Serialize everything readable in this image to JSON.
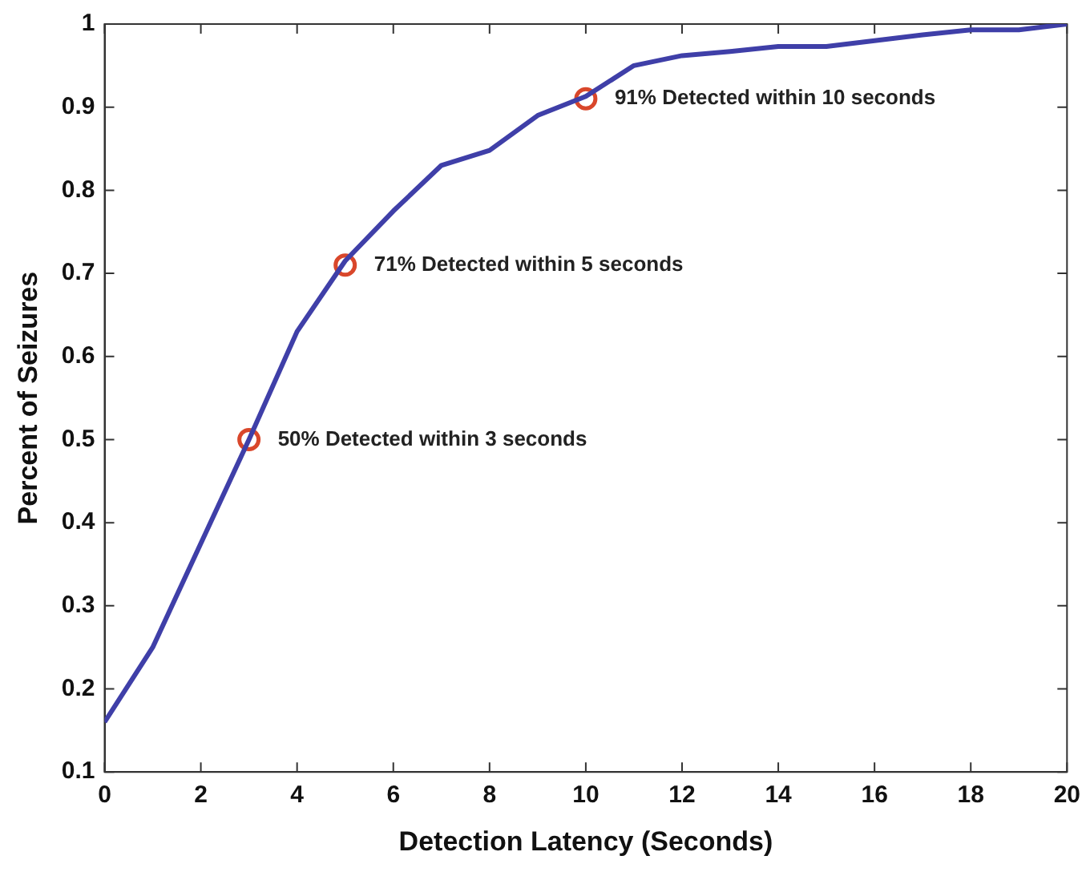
{
  "chart_data": {
    "type": "line",
    "xlabel": "Detection Latency (Seconds)",
    "ylabel": "Percent of Seizures",
    "x": [
      0,
      1,
      2,
      3,
      4,
      5,
      6,
      7,
      8,
      9,
      10,
      11,
      12,
      13,
      14,
      15,
      16,
      17,
      18,
      19,
      20
    ],
    "series": [
      {
        "type": "line",
        "color": "#3f3fa8",
        "marker": "none",
        "line_style": "solid",
        "values": [
          0.16,
          0.25,
          0.375,
          0.5,
          0.63,
          0.715,
          0.775,
          0.83,
          0.848,
          0.89,
          0.913,
          0.95,
          0.962,
          0.967,
          0.973,
          0.973,
          0.98,
          0.987,
          0.993,
          0.993,
          1.0
        ]
      },
      {
        "type": "scatter",
        "color": "#d9472b",
        "marker": "circle",
        "x": [
          3,
          5,
          10
        ],
        "values": [
          0.5,
          0.71,
          0.91
        ]
      }
    ],
    "xlim": [
      0,
      20
    ],
    "xticks": [
      0,
      2,
      4,
      6,
      8,
      10,
      12,
      14,
      16,
      18,
      20
    ],
    "ylim": [
      0.1,
      1
    ],
    "yticks": [
      0.1,
      0.2,
      0.3,
      0.4,
      0.5,
      0.6,
      0.7,
      0.8,
      0.9,
      1
    ],
    "grid": false,
    "legend": false,
    "annotations": [
      {
        "text": "50% Detected within 3 seconds",
        "x": 3,
        "y": 0.5
      },
      {
        "text": "71% Detected within 5 seconds",
        "x": 5,
        "y": 0.71
      },
      {
        "text": "91% Detected within 10 seconds",
        "x": 10,
        "y": 0.91
      }
    ]
  }
}
